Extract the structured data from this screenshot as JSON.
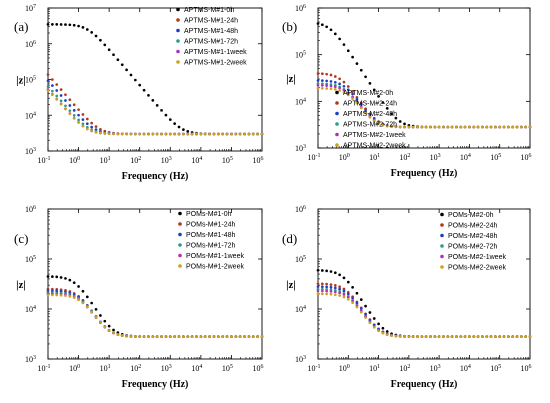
{
  "chart_data": [
    {
      "type": "scatter",
      "panel_label": "(a)",
      "xlabel": "Frequency (Hz)",
      "ylabel": "|z|",
      "xscale": "log",
      "yscale": "log",
      "xlim": [
        0.1,
        1000000
      ],
      "ylim": [
        1000,
        10000000
      ],
      "x_ticks": [
        {
          "v": 0.1,
          "base": "10",
          "exp": "-1"
        },
        {
          "v": 1,
          "base": "10",
          "exp": "0"
        },
        {
          "v": 10,
          "base": "10",
          "exp": "1"
        },
        {
          "v": 100,
          "base": "10",
          "exp": "2"
        },
        {
          "v": 1000,
          "base": "10",
          "exp": "3"
        },
        {
          "v": 10000,
          "base": "10",
          "exp": "4"
        },
        {
          "v": 100000,
          "base": "10",
          "exp": "5"
        },
        {
          "v": 1000000,
          "base": "10",
          "exp": "6"
        }
      ],
      "y_ticks": [
        {
          "v": 1000,
          "base": "10",
          "exp": "3"
        },
        {
          "v": 10000,
          "base": "10",
          "exp": "4"
        },
        {
          "v": 100000,
          "base": "10",
          "exp": "5"
        },
        {
          "v": 1000000,
          "base": "10",
          "exp": "6"
        },
        {
          "v": 10000000,
          "base": "10",
          "exp": "7"
        }
      ],
      "legend_position": "top-right",
      "series": [
        {
          "name": "APTMS-M#1-0h",
          "color": "#000000",
          "r0": 3500000,
          "rs": 3000,
          "fc": 2,
          "cdl": 3e-09
        },
        {
          "name": "APTMS-M#1-24h",
          "color": "#b03a1a",
          "r0": 700000,
          "rs": 3000,
          "fc": 0.02,
          "cdl": 3e-09
        },
        {
          "name": "APTMS-M#1-48h",
          "color": "#1c3fc4",
          "r0": 320000,
          "rs": 3000,
          "fc": 0.03,
          "cdl": 3e-09
        },
        {
          "name": "APTMS-M#1-72h",
          "color": "#2e9a8c",
          "r0": 170000,
          "rs": 3000,
          "fc": 0.04,
          "cdl": 3e-09
        },
        {
          "name": "APTMS-M#1-1week",
          "color": "#b22fb8",
          "r0": 140000,
          "rs": 3000,
          "fc": 0.04,
          "cdl": 3e-09
        },
        {
          "name": "APTMS-M#1-2week",
          "color": "#c9a21e",
          "r0": 110000,
          "rs": 3000,
          "fc": 0.05,
          "cdl": 3e-09
        }
      ]
    },
    {
      "type": "scatter",
      "panel_label": "(b)",
      "xlabel": "Frequency (Hz)",
      "ylabel": "|z|",
      "xscale": "log",
      "yscale": "log",
      "xlim": [
        0.1,
        1000000
      ],
      "ylim": [
        1000,
        1000000
      ],
      "x_ticks": [
        {
          "v": 0.1,
          "base": "10",
          "exp": "-1"
        },
        {
          "v": 1,
          "base": "10",
          "exp": "0"
        },
        {
          "v": 10,
          "base": "10",
          "exp": "1"
        },
        {
          "v": 100,
          "base": "10",
          "exp": "2"
        },
        {
          "v": 1000,
          "base": "10",
          "exp": "3"
        },
        {
          "v": 10000,
          "base": "10",
          "exp": "4"
        },
        {
          "v": 100000,
          "base": "10",
          "exp": "5"
        },
        {
          "v": 1000000,
          "base": "10",
          "exp": "6"
        }
      ],
      "y_ticks": [
        {
          "v": 1000,
          "base": "10",
          "exp": "3"
        },
        {
          "v": 10000,
          "base": "10",
          "exp": "4"
        },
        {
          "v": 100000,
          "base": "10",
          "exp": "5"
        },
        {
          "v": 1000000,
          "base": "10",
          "exp": "6"
        }
      ],
      "legend_position": "bottom-left",
      "series": [
        {
          "name": "APTMS-M#2-0h",
          "color": "#000000",
          "r0": 500000,
          "rs": 2800,
          "fc": 0.25,
          "cdl": 3.5e-09
        },
        {
          "name": "APTMS-M#2-24h",
          "color": "#b03a1a",
          "r0": 40000,
          "rs": 2800,
          "fc": 0.6,
          "cdl": 3.5e-09
        },
        {
          "name": "APTMS-M#2-48h",
          "color": "#1c3fc4",
          "r0": 28000,
          "rs": 2800,
          "fc": 0.8,
          "cdl": 3.5e-09
        },
        {
          "name": "APTMS-M#2-72h",
          "color": "#2e9a8c",
          "r0": 24000,
          "rs": 2800,
          "fc": 0.8,
          "cdl": 3.5e-09
        },
        {
          "name": "APTMS-M#2-1week",
          "color": "#b22fb8",
          "r0": 22000,
          "rs": 2800,
          "fc": 0.9,
          "cdl": 3.5e-09
        },
        {
          "name": "APTMS-M#2-2week",
          "color": "#c9a21e",
          "r0": 19000,
          "rs": 2800,
          "fc": 1.0,
          "cdl": 3.5e-09
        }
      ]
    },
    {
      "type": "scatter",
      "panel_label": "(c)",
      "xlabel": "Frequency (Hz)",
      "ylabel": "|z|",
      "xscale": "log",
      "yscale": "log",
      "xlim": [
        0.1,
        1000000
      ],
      "ylim": [
        1000,
        1000000
      ],
      "x_ticks": [
        {
          "v": 0.1,
          "base": "10",
          "exp": "-1"
        },
        {
          "v": 1,
          "base": "10",
          "exp": "0"
        },
        {
          "v": 10,
          "base": "10",
          "exp": "1"
        },
        {
          "v": 100,
          "base": "10",
          "exp": "2"
        },
        {
          "v": 1000,
          "base": "10",
          "exp": "3"
        },
        {
          "v": 10000,
          "base": "10",
          "exp": "4"
        },
        {
          "v": 100000,
          "base": "10",
          "exp": "5"
        },
        {
          "v": 1000000,
          "base": "10",
          "exp": "6"
        }
      ],
      "y_ticks": [
        {
          "v": 1000,
          "base": "10",
          "exp": "3"
        },
        {
          "v": 10000,
          "base": "10",
          "exp": "4"
        },
        {
          "v": 100000,
          "base": "10",
          "exp": "5"
        },
        {
          "v": 1000000,
          "base": "10",
          "exp": "6"
        }
      ],
      "legend_position": "top-right",
      "series": [
        {
          "name": "POMs-M#1-0h",
          "color": "#000000",
          "r0": 45000,
          "rs": 2800,
          "fc": 0.8,
          "cdl": 3.5e-09
        },
        {
          "name": "POMs-M#1-24h",
          "color": "#b03a1a",
          "r0": 25000,
          "rs": 2800,
          "fc": 1.0,
          "cdl": 3.5e-09
        },
        {
          "name": "POMs-M#1-48h",
          "color": "#1c3fc4",
          "r0": 23000,
          "rs": 2800,
          "fc": 1.1,
          "cdl": 3.5e-09
        },
        {
          "name": "POMs-M#1-72h",
          "color": "#2e9a8c",
          "r0": 21000,
          "rs": 2800,
          "fc": 1.2,
          "cdl": 3.5e-09
        },
        {
          "name": "POMs-M#1-1week",
          "color": "#b22fb8",
          "r0": 20000,
          "rs": 2800,
          "fc": 1.2,
          "cdl": 3.5e-09
        },
        {
          "name": "POMs-M#1-2week",
          "color": "#c9a21e",
          "r0": 19000,
          "rs": 2800,
          "fc": 1.3,
          "cdl": 3.5e-09
        }
      ]
    },
    {
      "type": "scatter",
      "panel_label": "(d)",
      "xlabel": "Frequency (Hz)",
      "ylabel": "|z|",
      "xscale": "log",
      "yscale": "log",
      "xlim": [
        0.1,
        1000000
      ],
      "ylim": [
        1000,
        1000000
      ],
      "x_ticks": [
        {
          "v": 0.1,
          "base": "10",
          "exp": "-1"
        },
        {
          "v": 1,
          "base": "10",
          "exp": "0"
        },
        {
          "v": 10,
          "base": "10",
          "exp": "1"
        },
        {
          "v": 100,
          "base": "10",
          "exp": "2"
        },
        {
          "v": 1000,
          "base": "10",
          "exp": "3"
        },
        {
          "v": 10000,
          "base": "10",
          "exp": "4"
        },
        {
          "v": 100000,
          "base": "10",
          "exp": "5"
        },
        {
          "v": 1000000,
          "base": "10",
          "exp": "6"
        }
      ],
      "y_ticks": [
        {
          "v": 1000,
          "base": "10",
          "exp": "3"
        },
        {
          "v": 10000,
          "base": "10",
          "exp": "4"
        },
        {
          "v": 100000,
          "base": "10",
          "exp": "5"
        },
        {
          "v": 1000000,
          "base": "10",
          "exp": "6"
        }
      ],
      "legend_position": "top-right",
      "series": [
        {
          "name": "POMs-M#2-0h",
          "color": "#000000",
          "r0": 60000,
          "rs": 2800,
          "fc": 0.7,
          "cdl": 3.5e-09
        },
        {
          "name": "POMs-M#2-24h",
          "color": "#b03a1a",
          "r0": 32000,
          "rs": 2800,
          "fc": 0.9,
          "cdl": 3.5e-09
        },
        {
          "name": "POMs-M#2-48h",
          "color": "#1c3fc4",
          "r0": 28000,
          "rs": 2800,
          "fc": 1.0,
          "cdl": 3.5e-09
        },
        {
          "name": "POMs-M#2-72h",
          "color": "#2e9a8c",
          "r0": 25000,
          "rs": 2800,
          "fc": 1.0,
          "cdl": 3.5e-09
        },
        {
          "name": "POMs-M#2-1week",
          "color": "#b22fb8",
          "r0": 23000,
          "rs": 2800,
          "fc": 1.1,
          "cdl": 3.5e-09
        },
        {
          "name": "POMs-M#2-2week",
          "color": "#c9a21e",
          "r0": 20000,
          "rs": 2800,
          "fc": 1.2,
          "cdl": 3.5e-09
        }
      ]
    }
  ]
}
